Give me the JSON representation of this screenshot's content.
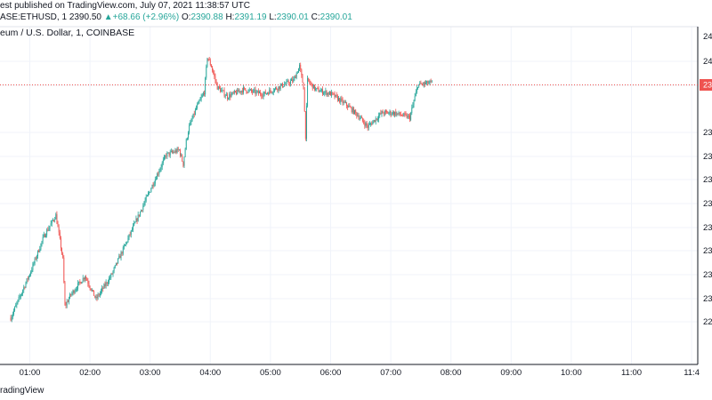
{
  "header": {
    "line1": "est published on TradingView.com, July 07, 2021 11:38:57 UTC",
    "symbol": "ASE:ETHUSD, 1",
    "last": "2390.50",
    "change": "+68.66 (+2.96%)",
    "o_label": "O:",
    "o_val": "2390.88",
    "h_label": "H:",
    "h_val": "2391.19",
    "l_label": "L:",
    "l_val": "2390.01",
    "c_label": "C:",
    "c_val": "2390.01",
    "title": "eum / U.S. Dollar, 1, COINBASE"
  },
  "footer": {
    "brand": "radingView"
  },
  "colors": {
    "up": "#26a69a",
    "down": "#ef5350",
    "grid": "#f0f3fa",
    "priceLine": "#ef5350"
  },
  "chart_data": {
    "type": "candlestick",
    "title": "eum / U.S. Dollar, 1, COINBASE",
    "x_ticks": [
      "01:00",
      "02:00",
      "03:00",
      "04:00",
      "05:00",
      "06:00",
      "07:00",
      "08:00",
      "09:00",
      "10:00",
      "11:00",
      "11:4"
    ],
    "y_ticks": [
      "24",
      "24",
      "23",
      "23",
      "23",
      "23",
      "23",
      "23",
      "23",
      "23",
      "22"
    ],
    "y_top_label": "24",
    "last_price_label": "23",
    "last_price": 2390.01,
    "ylim": [
      2270,
      2415
    ],
    "start": "00:41",
    "minutes": 420,
    "price_path": [
      [
        0,
        2290
      ],
      [
        7,
        2297
      ],
      [
        20,
        2310
      ],
      [
        33,
        2325
      ],
      [
        45,
        2334
      ],
      [
        52,
        2315
      ],
      [
        54,
        2295
      ],
      [
        60,
        2300
      ],
      [
        74,
        2308
      ],
      [
        85,
        2298
      ],
      [
        100,
        2308
      ],
      [
        118,
        2325
      ],
      [
        136,
        2342
      ],
      [
        155,
        2360
      ],
      [
        168,
        2362
      ],
      [
        172,
        2356
      ],
      [
        175,
        2366
      ],
      [
        178,
        2372
      ],
      [
        185,
        2380
      ],
      [
        193,
        2387
      ],
      [
        196,
        2402
      ],
      [
        200,
        2398
      ],
      [
        206,
        2389
      ],
      [
        216,
        2385
      ],
      [
        232,
        2388
      ],
      [
        252,
        2386
      ],
      [
        272,
        2390
      ],
      [
        282,
        2392
      ],
      [
        288,
        2398
      ],
      [
        292,
        2389
      ],
      [
        294,
        2368
      ],
      [
        296,
        2392
      ],
      [
        304,
        2388
      ],
      [
        320,
        2386
      ],
      [
        336,
        2381
      ],
      [
        346,
        2377
      ],
      [
        356,
        2372
      ],
      [
        370,
        2378
      ],
      [
        382,
        2378
      ],
      [
        398,
        2376
      ],
      [
        406,
        2390
      ],
      [
        420,
        2391
      ]
    ]
  }
}
